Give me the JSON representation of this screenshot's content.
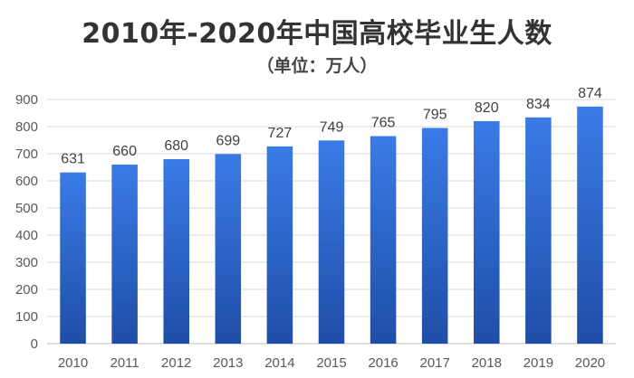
{
  "colors": {
    "bar_top": "#3a7be6",
    "bar_bottom": "#1f4ea8",
    "grid": "#d9d9d9",
    "axis": "#bfbfbf"
  },
  "chart_data": {
    "type": "bar",
    "title": "2010年-2020年中国高校毕业生人数",
    "subtitle": "（单位：万人）",
    "categories": [
      "2010",
      "2011",
      "2012",
      "2013",
      "2014",
      "2015",
      "2016",
      "2017",
      "2018",
      "2019",
      "2020"
    ],
    "values": [
      631,
      660,
      680,
      699,
      727,
      749,
      765,
      795,
      820,
      834,
      874
    ],
    "ylim": [
      0,
      900
    ],
    "yticks": [
      0,
      100,
      200,
      300,
      400,
      500,
      600,
      700,
      800,
      900
    ],
    "grid": true,
    "legend": "none"
  }
}
